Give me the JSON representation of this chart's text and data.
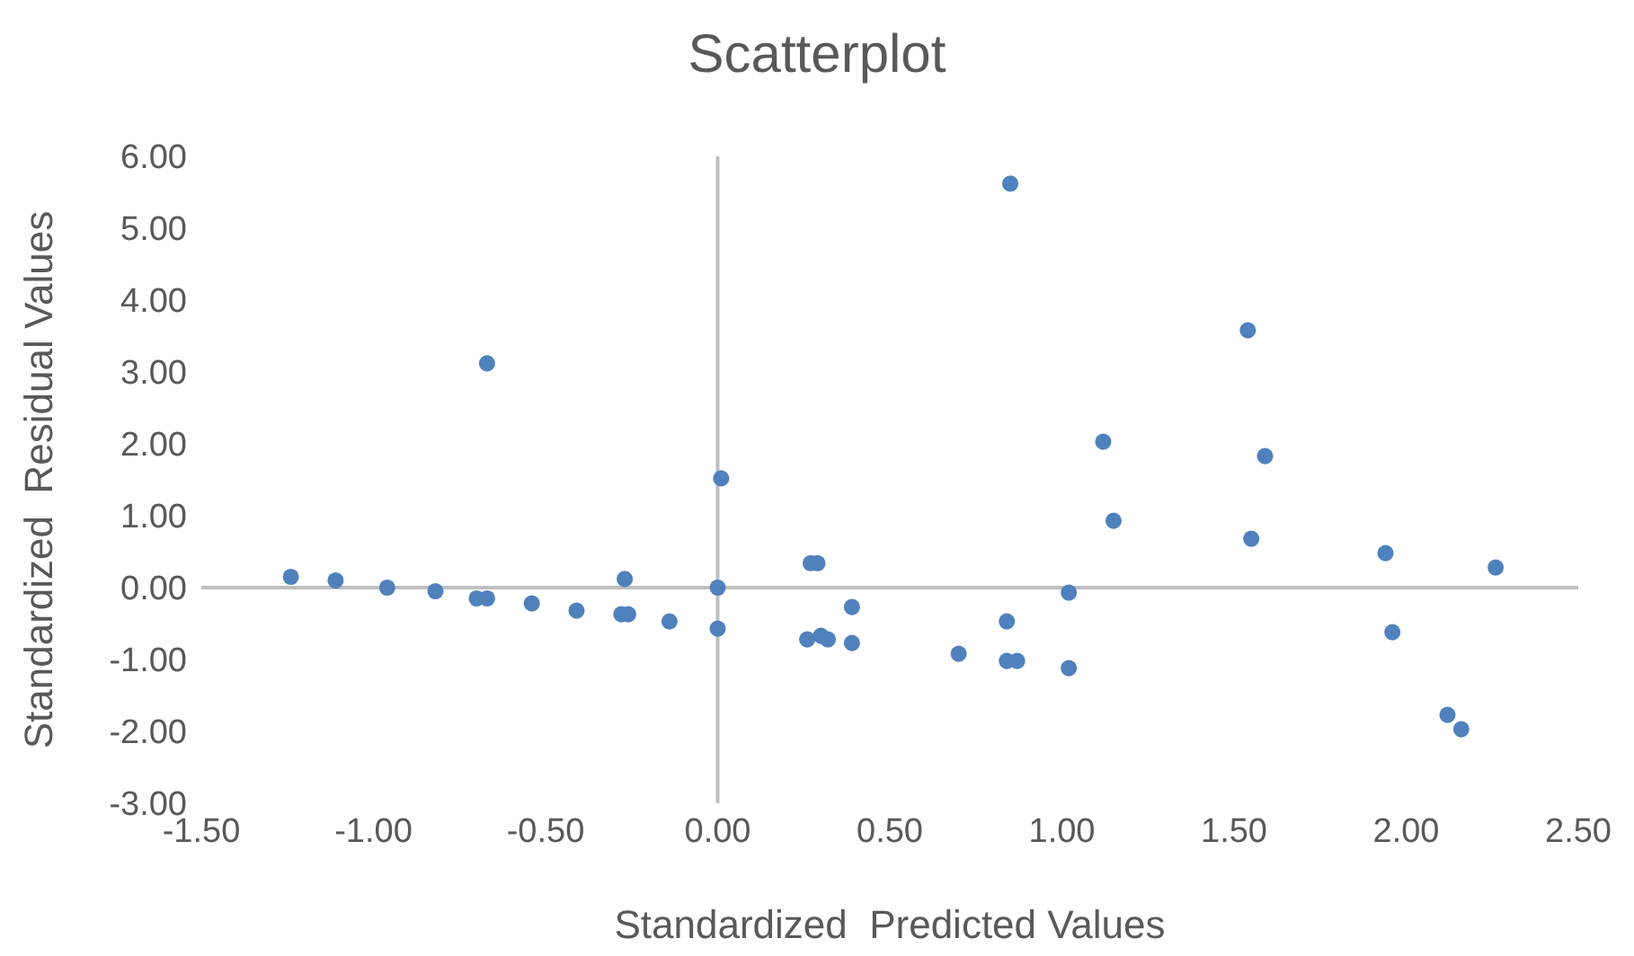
{
  "chart_data": {
    "type": "scatter",
    "title": "Scatterplot",
    "xlabel": "Standardized  Predicted Values",
    "ylabel": "Standardized  Residual Values",
    "x": [
      -1.24,
      -1.11,
      -0.96,
      -0.82,
      -0.7,
      -0.67,
      -0.54,
      -0.41,
      -0.28,
      -0.26,
      -0.14,
      0,
      0,
      0.01,
      -0.27,
      -0.67,
      0.27,
      0.29,
      0.39,
      0.26,
      0.3,
      0.32,
      0.39,
      0.7,
      0.84,
      0.84,
      0.87,
      1.02,
      1.02,
      0.85,
      1.12,
      1.15,
      1.54,
      1.59,
      1.55,
      1.94,
      1.96,
      2.12,
      2.16,
      2.26
    ],
    "series": [
      {
        "color": "#4f81bd",
        "values": [
          0.15,
          0.1,
          0.0,
          -0.05,
          -0.15,
          -0.15,
          -0.22,
          -0.32,
          -0.37,
          -0.37,
          -0.47,
          -0.57,
          0.0,
          1.52,
          0.12,
          3.12,
          0.34,
          0.34,
          -0.27,
          -0.72,
          -0.67,
          -0.72,
          -0.77,
          -0.92,
          -0.47,
          -1.02,
          -1.02,
          -0.07,
          -1.12,
          5.62,
          2.03,
          0.93,
          3.58,
          1.83,
          0.68,
          0.48,
          -0.62,
          -1.77,
          -1.97,
          0.28
        ]
      }
    ],
    "xlim": [
      -1.5,
      2.5
    ],
    "xticks": [
      {
        "value": -1.5,
        "label": "-1.50"
      },
      {
        "value": -1,
        "label": "-1.00"
      },
      {
        "value": -0.5,
        "label": "-0.50"
      },
      {
        "value": 0,
        "label": "0.00"
      },
      {
        "value": 0.5,
        "label": "0.50"
      },
      {
        "value": 1,
        "label": "1.00"
      },
      {
        "value": 1.5,
        "label": "1.50"
      },
      {
        "value": 2,
        "label": "2.00"
      },
      {
        "value": 2.5,
        "label": "2.50"
      }
    ],
    "ylim": [
      -3,
      6
    ],
    "yticks": [
      {
        "value": -3,
        "label": "-3.00"
      },
      {
        "value": -2,
        "label": "-2.00"
      },
      {
        "value": -1,
        "label": "-1.00"
      },
      {
        "value": 0,
        "label": "0.00"
      },
      {
        "value": 1,
        "label": "1.00"
      },
      {
        "value": 2,
        "label": "2.00"
      },
      {
        "value": 3,
        "label": "3.00"
      },
      {
        "value": 4,
        "label": "4.00"
      },
      {
        "value": 5,
        "label": "5.00"
      },
      {
        "value": 6,
        "label": "6.00"
      }
    ],
    "marker": "circle"
  }
}
